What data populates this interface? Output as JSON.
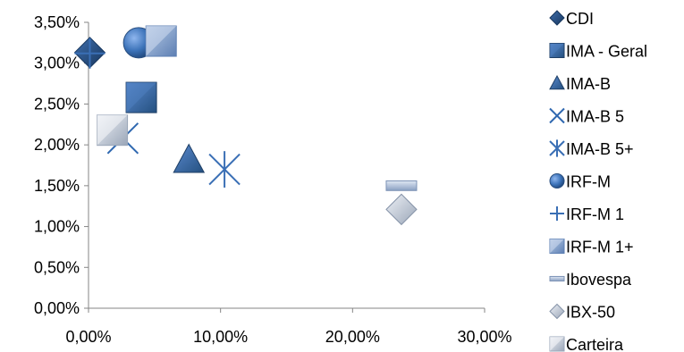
{
  "chart_data": {
    "type": "scatter",
    "title": "",
    "xlabel": "",
    "ylabel": "",
    "xlim": [
      0,
      30
    ],
    "ylim": [
      0,
      3.5
    ],
    "xticks": [
      "0,00%",
      "10,00%",
      "20,00%",
      "30,00%"
    ],
    "yticks": [
      "0,00%",
      "0,50%",
      "1,00%",
      "1,50%",
      "2,00%",
      "2,50%",
      "3,00%",
      "3,50%"
    ],
    "grid": false,
    "legend_position": "right",
    "series": [
      {
        "name": "CDI",
        "x": 0.1,
        "y": 3.13,
        "marker": "diamond",
        "color": "#1f497d"
      },
      {
        "name": "IMA - Geral",
        "x": 4.0,
        "y": 2.58,
        "marker": "square-shaded",
        "color": "#2e5f9a"
      },
      {
        "name": "IMA-B",
        "x": 7.6,
        "y": 1.82,
        "marker": "triangle",
        "color": "#2e5f9a"
      },
      {
        "name": "IMA-B 5",
        "x": 2.6,
        "y": 2.08,
        "marker": "x",
        "color": "#2f68b0"
      },
      {
        "name": "IMA-B 5+",
        "x": 10.3,
        "y": 1.7,
        "marker": "asterisk",
        "color": "#3a6fb5"
      },
      {
        "name": "IRF-M",
        "x": 3.8,
        "y": 3.25,
        "marker": "circle",
        "color": "#3c73b9"
      },
      {
        "name": "IRF-M 1",
        "x": 0.1,
        "y": 3.12,
        "marker": "plus",
        "color": "#3a6fb5"
      },
      {
        "name": "IRF-M 1+",
        "x": 5.5,
        "y": 3.27,
        "marker": "square-gradient",
        "color": "#7c9bcb"
      },
      {
        "name": "Ibovespa",
        "x": 23.7,
        "y": 1.5,
        "marker": "dash",
        "color": "#9fb2d0"
      },
      {
        "name": "IBX-50",
        "x": 23.7,
        "y": 1.21,
        "marker": "diamond-light",
        "color": "#a9b6c9"
      },
      {
        "name": "Carteira",
        "x": 1.8,
        "y": 2.18,
        "marker": "square-light",
        "color": "#c4ccd8"
      }
    ]
  }
}
